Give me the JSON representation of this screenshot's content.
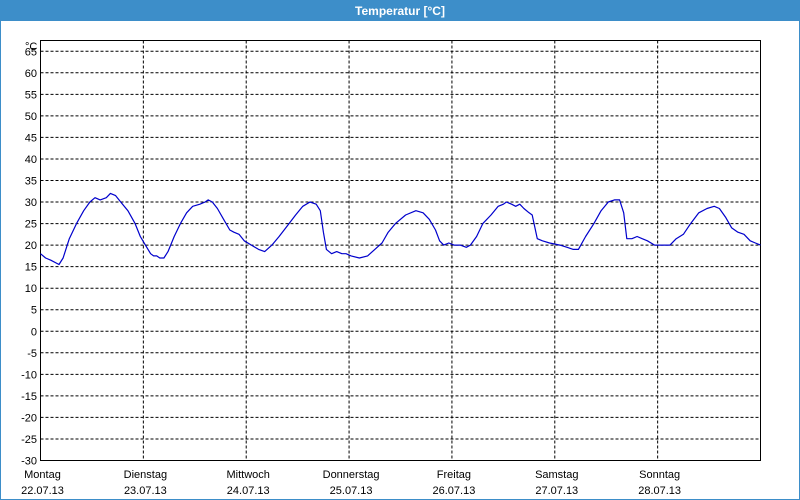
{
  "window": {
    "title": "Temperatur [°C]"
  },
  "colors": {
    "title_bar": "#3d8ec9",
    "line": "#0000cc",
    "grid": "#000000"
  },
  "chart_data": {
    "type": "line",
    "title": "Temperatur [°C]",
    "unit_label": "°C",
    "ylim": [
      -30,
      67.5
    ],
    "yticks": [
      65,
      60,
      55,
      50,
      45,
      40,
      35,
      30,
      25,
      20,
      15,
      10,
      5,
      0,
      -5,
      -10,
      -15,
      -20,
      -25,
      -30
    ],
    "xlim": [
      0,
      7
    ],
    "grid": true,
    "xticks": [
      {
        "day": "Montag",
        "date": "22.07.13",
        "x": 0
      },
      {
        "day": "Dienstag",
        "date": "23.07.13",
        "x": 1
      },
      {
        "day": "Mittwoch",
        "date": "24.07.13",
        "x": 2
      },
      {
        "day": "Donnerstag",
        "date": "25.07.13",
        "x": 3
      },
      {
        "day": "Freitag",
        "date": "26.07.13",
        "x": 4
      },
      {
        "day": "Samstag",
        "date": "27.07.13",
        "x": 5
      },
      {
        "day": "Sonntag",
        "date": "28.07.13",
        "x": 6
      }
    ],
    "series": [
      {
        "values": [
          [
            0.0,
            18.0
          ],
          [
            0.05,
            17.0
          ],
          [
            0.1,
            16.5
          ],
          [
            0.18,
            15.5
          ],
          [
            0.22,
            17.0
          ],
          [
            0.28,
            21.5
          ],
          [
            0.35,
            25.0
          ],
          [
            0.42,
            28.0
          ],
          [
            0.48,
            30.0
          ],
          [
            0.53,
            31.0
          ],
          [
            0.58,
            30.5
          ],
          [
            0.64,
            31.0
          ],
          [
            0.68,
            32.0
          ],
          [
            0.73,
            31.5
          ],
          [
            0.78,
            30.0
          ],
          [
            0.85,
            28.0
          ],
          [
            0.92,
            25.0
          ],
          [
            0.97,
            22.0
          ],
          [
            1.02,
            20.0
          ],
          [
            1.07,
            18.0
          ],
          [
            1.1,
            17.5
          ],
          [
            1.13,
            17.5
          ],
          [
            1.16,
            17.0
          ],
          [
            1.2,
            17.0
          ],
          [
            1.24,
            18.5
          ],
          [
            1.3,
            22.0
          ],
          [
            1.36,
            25.0
          ],
          [
            1.42,
            27.5
          ],
          [
            1.48,
            29.0
          ],
          [
            1.55,
            29.5
          ],
          [
            1.6,
            30.0
          ],
          [
            1.63,
            30.5
          ],
          [
            1.67,
            30.0
          ],
          [
            1.72,
            28.5
          ],
          [
            1.78,
            26.0
          ],
          [
            1.84,
            23.5
          ],
          [
            1.88,
            23.0
          ],
          [
            1.93,
            22.5
          ],
          [
            1.98,
            21.0
          ],
          [
            2.05,
            20.0
          ],
          [
            2.12,
            19.0
          ],
          [
            2.18,
            18.5
          ],
          [
            2.25,
            20.0
          ],
          [
            2.32,
            22.0
          ],
          [
            2.4,
            24.5
          ],
          [
            2.48,
            27.0
          ],
          [
            2.55,
            29.0
          ],
          [
            2.62,
            30.0
          ],
          [
            2.68,
            29.5
          ],
          [
            2.72,
            28.0
          ],
          [
            2.75,
            23.0
          ],
          [
            2.78,
            19.0
          ],
          [
            2.83,
            18.0
          ],
          [
            2.88,
            18.5
          ],
          [
            2.93,
            18.0
          ],
          [
            2.97,
            18.0
          ],
          [
            3.02,
            17.5
          ],
          [
            3.1,
            17.0
          ],
          [
            3.18,
            17.5
          ],
          [
            3.25,
            19.0
          ],
          [
            3.32,
            20.5
          ],
          [
            3.38,
            23.0
          ],
          [
            3.45,
            25.0
          ],
          [
            3.55,
            27.0
          ],
          [
            3.65,
            28.0
          ],
          [
            3.72,
            27.5
          ],
          [
            3.78,
            26.0
          ],
          [
            3.84,
            23.5
          ],
          [
            3.88,
            21.0
          ],
          [
            3.92,
            20.0
          ],
          [
            3.97,
            20.5
          ],
          [
            4.02,
            20.0
          ],
          [
            4.08,
            20.0
          ],
          [
            4.14,
            19.5
          ],
          [
            4.18,
            20.0
          ],
          [
            4.24,
            22.0
          ],
          [
            4.3,
            25.0
          ],
          [
            4.38,
            27.0
          ],
          [
            4.45,
            29.0
          ],
          [
            4.5,
            29.5
          ],
          [
            4.53,
            30.0
          ],
          [
            4.58,
            29.5
          ],
          [
            4.62,
            29.0
          ],
          [
            4.66,
            29.5
          ],
          [
            4.7,
            28.5
          ],
          [
            4.75,
            27.5
          ],
          [
            4.78,
            27.0
          ],
          [
            4.83,
            21.5
          ],
          [
            4.88,
            21.0
          ],
          [
            4.95,
            20.5
          ],
          [
            5.05,
            20.0
          ],
          [
            5.12,
            19.5
          ],
          [
            5.18,
            19.0
          ],
          [
            5.23,
            19.0
          ],
          [
            5.3,
            22.0
          ],
          [
            5.38,
            25.0
          ],
          [
            5.45,
            28.0
          ],
          [
            5.52,
            30.0
          ],
          [
            5.58,
            30.5
          ],
          [
            5.63,
            30.5
          ],
          [
            5.67,
            27.5
          ],
          [
            5.7,
            21.5
          ],
          [
            5.75,
            21.5
          ],
          [
            5.8,
            22.0
          ],
          [
            5.85,
            21.5
          ],
          [
            5.9,
            21.0
          ],
          [
            5.97,
            20.0
          ],
          [
            6.05,
            20.0
          ],
          [
            6.12,
            20.0
          ],
          [
            6.18,
            21.5
          ],
          [
            6.25,
            22.5
          ],
          [
            6.32,
            25.0
          ],
          [
            6.4,
            27.5
          ],
          [
            6.48,
            28.5
          ],
          [
            6.55,
            29.0
          ],
          [
            6.6,
            28.5
          ],
          [
            6.66,
            26.5
          ],
          [
            6.72,
            24.0
          ],
          [
            6.78,
            23.0
          ],
          [
            6.84,
            22.5
          ],
          [
            6.9,
            21.0
          ],
          [
            6.95,
            20.5
          ],
          [
            7.0,
            20.0
          ]
        ]
      }
    ]
  }
}
